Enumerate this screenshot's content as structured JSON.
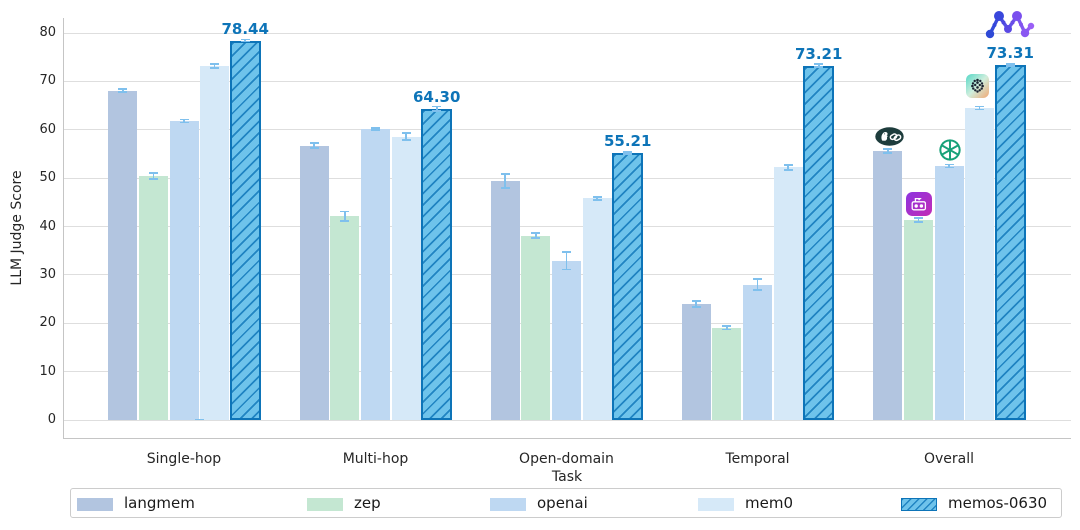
{
  "chart_data": {
    "type": "bar",
    "title": "",
    "xlabel": "Task",
    "ylabel": "LLM Judge Score",
    "ylim": [
      0,
      80
    ],
    "yticks": [
      0,
      10,
      20,
      30,
      40,
      50,
      60,
      70,
      80
    ],
    "categories": [
      "Single-hop",
      "Multi-hop",
      "Open-domain",
      "Temporal",
      "Overall"
    ],
    "series": [
      {
        "name": "langmem",
        "color": "#b2c5e0",
        "values": [
          68.1,
          56.7,
          49.4,
          24.0,
          55.6
        ],
        "errors": [
          0.3,
          0.5,
          1.5,
          0.6,
          0.4
        ]
      },
      {
        "name": "zep",
        "color": "#c4e7d2",
        "values": [
          50.4,
          42.1,
          38.1,
          19.1,
          41.4
        ],
        "errors": [
          0.6,
          1.0,
          0.5,
          0.4,
          0.4
        ]
      },
      {
        "name": "openai",
        "color": "#bed8f2",
        "values": [
          61.8,
          60.1,
          32.9,
          28.0,
          52.5
        ],
        "errors": [
          0.3,
          0.2,
          1.8,
          1.2,
          0.3
        ]
      },
      {
        "name": "mem0",
        "color": "#d6e9f8",
        "values": [
          73.2,
          58.6,
          45.8,
          52.2,
          64.5
        ],
        "errors": [
          0.4,
          0.7,
          0.3,
          0.5,
          0.3
        ]
      },
      {
        "name": "memos-0630",
        "color": "#6ec3eb",
        "edge_color": "#0d74b8",
        "hatch": "//",
        "values": [
          78.44,
          64.3,
          55.21,
          73.21,
          73.31
        ],
        "errors": [
          0.2,
          0.5,
          0.2,
          0.3,
          0.2
        ],
        "value_labels": [
          "78.44",
          "64.30",
          "55.21",
          "73.21",
          "73.31"
        ]
      }
    ],
    "grid": true,
    "legend_position": "bottom",
    "annotation_color": "#0d74b8",
    "error_bar_color": "#7fc0ed"
  },
  "legend": {
    "items": [
      "langmem",
      "zep",
      "openai",
      "mem0",
      "memos-0630"
    ]
  },
  "overall_icons": [
    {
      "name": "langmem-logo",
      "shape": "dark-pill-parrot-and-chain-link"
    },
    {
      "name": "zep-logo",
      "shape": "purple-magenta-gradient-robot-face"
    },
    {
      "name": "openai-logo",
      "shape": "green-knot"
    },
    {
      "name": "mem0-logo",
      "shape": "teal-orange-gradient-dot-sphere"
    },
    {
      "name": "memos-logo",
      "shape": "blue-violet-network-m-graph"
    }
  ]
}
